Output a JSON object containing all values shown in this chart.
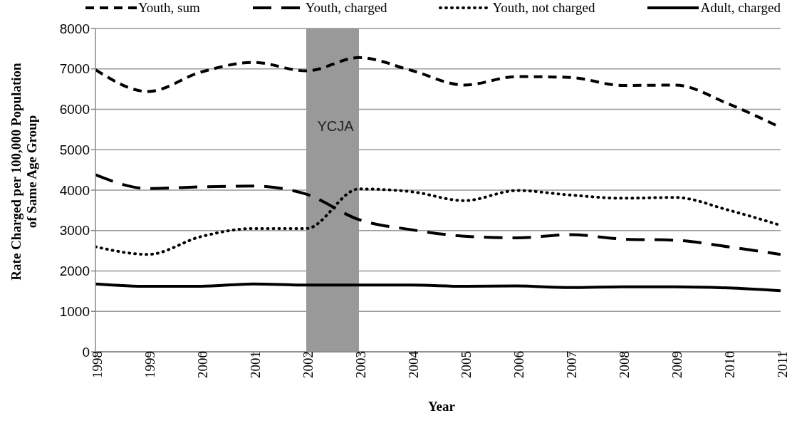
{
  "chart_data": {
    "type": "line",
    "xlabel": "Year",
    "ylabel": "Rate Charged per 100,000 Population of Same Age Group",
    "x": [
      1998,
      1999,
      2000,
      2001,
      2002,
      2003,
      2004,
      2005,
      2006,
      2007,
      2008,
      2009,
      2010,
      2011
    ],
    "xlim": [
      1998,
      2011
    ],
    "xticks": [
      1998,
      1999,
      2000,
      2001,
      2002,
      2003,
      2004,
      2005,
      2006,
      2007,
      2008,
      2009,
      2010,
      2011
    ],
    "ylim": [
      0,
      8000
    ],
    "yticks": [
      0,
      1000,
      2000,
      3000,
      4000,
      5000,
      6000,
      7000,
      8000
    ],
    "grid": "y",
    "legend": "top",
    "marker": "none",
    "bands": [
      {
        "axis": "x",
        "from": 2002,
        "to": 2003,
        "label": "YCJA",
        "color": "#999999"
      }
    ],
    "series": [
      {
        "name": "Youth, sum",
        "color": "#000000",
        "line_style": "dashed",
        "values": [
          6980,
          6440,
          6920,
          7160,
          6950,
          7280,
          6960,
          6600,
          6810,
          6790,
          6590,
          6600,
          6140,
          5550
        ]
      },
      {
        "name": "Youth, charged",
        "color": "#000000",
        "line_style": "dashed",
        "values": [
          4380,
          4040,
          4080,
          4100,
          3900,
          3270,
          3020,
          2860,
          2820,
          2900,
          2790,
          2760,
          2600,
          2410
        ]
      },
      {
        "name": "Youth, not charged",
        "color": "#000000",
        "line_style": "dotted",
        "values": [
          2600,
          2410,
          2850,
          3050,
          3050,
          4030,
          3960,
          3740,
          3990,
          3880,
          3800,
          3820,
          3510,
          3130
        ]
      },
      {
        "name": "Adult, charged",
        "color": "#000000",
        "line_style": "solid",
        "values": [
          1680,
          1620,
          1620,
          1680,
          1650,
          1650,
          1650,
          1620,
          1630,
          1590,
          1610,
          1610,
          1580,
          1510
        ]
      }
    ]
  }
}
